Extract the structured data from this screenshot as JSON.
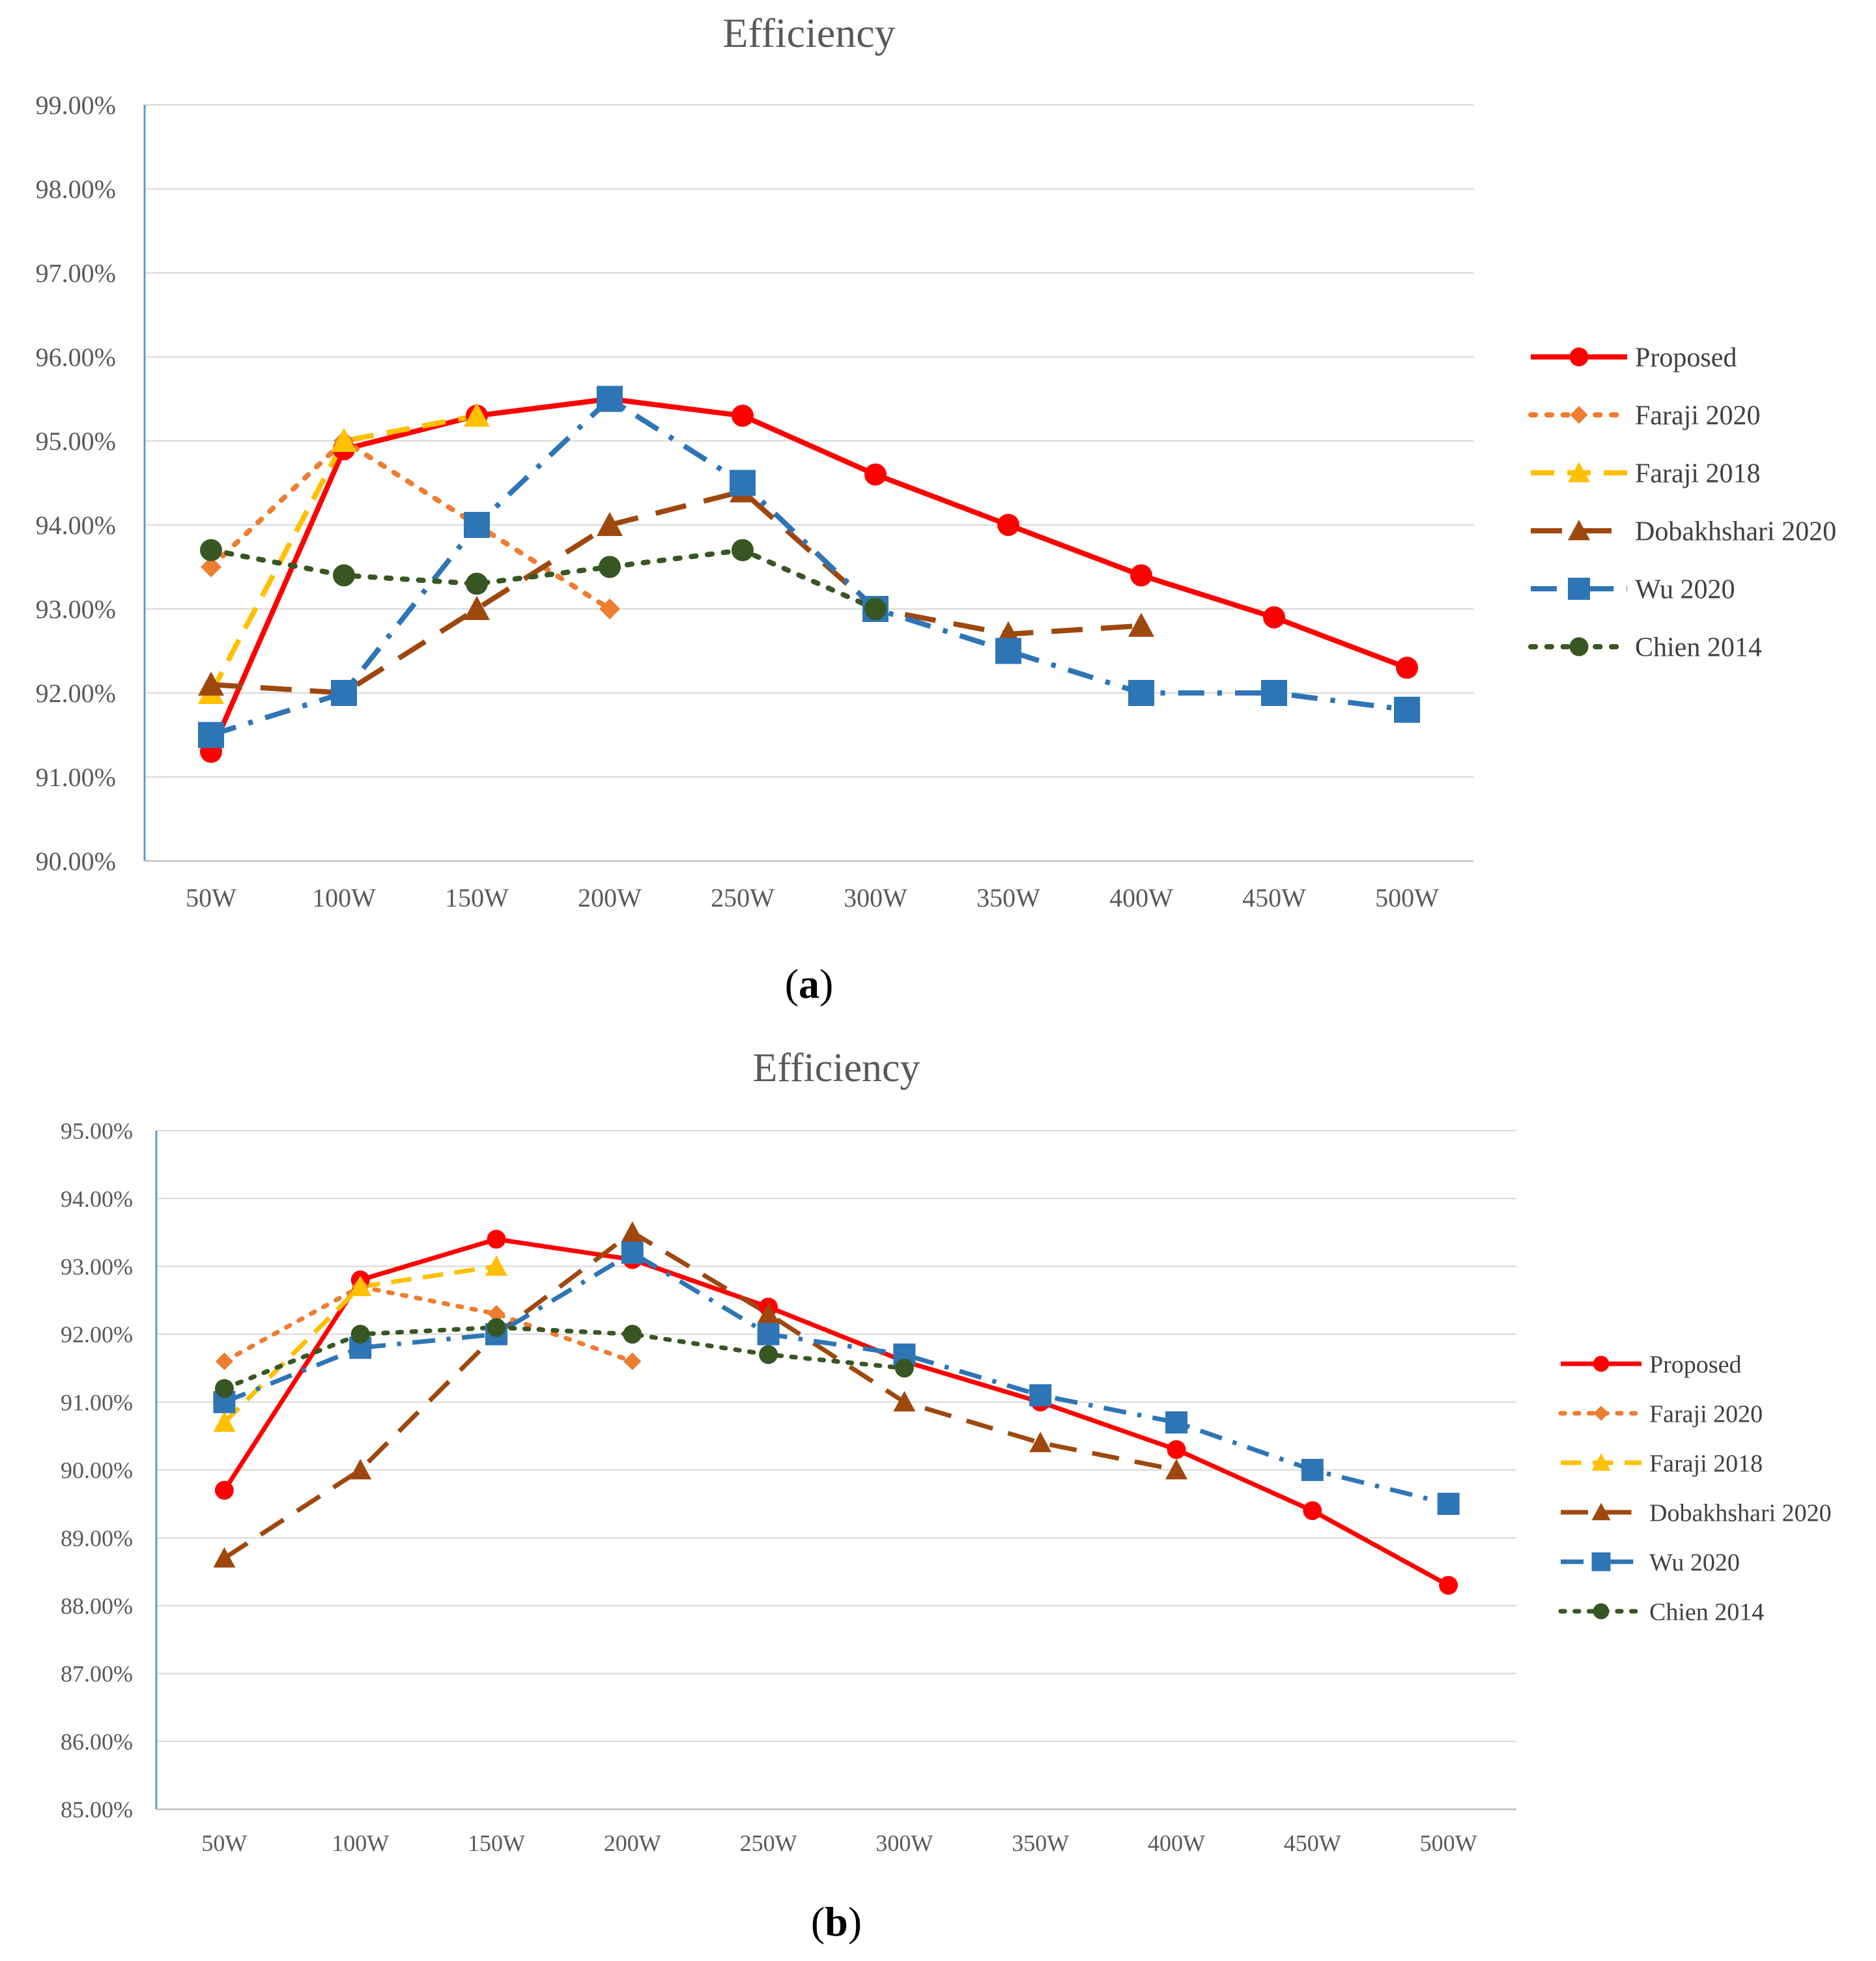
{
  "figure": {
    "panels": [
      "a",
      "b"
    ]
  },
  "chart_data": [
    {
      "panel": "a",
      "type": "line",
      "title": "Efficiency",
      "panel_label": "a",
      "xlabel": "",
      "ylabel": "",
      "categories": [
        "50W",
        "100W",
        "150W",
        "200W",
        "250W",
        "300W",
        "350W",
        "400W",
        "450W",
        "500W"
      ],
      "ylim": [
        90,
        99
      ],
      "yticks": [
        "90.00%",
        "91.00%",
        "92.00%",
        "93.00%",
        "94.00%",
        "95.00%",
        "96.00%",
        "97.00%",
        "98.00%",
        "99.00%"
      ],
      "grid": true,
      "legend_position": "right",
      "series": [
        {
          "name": "Proposed",
          "color": "#ff0000",
          "dash": "solid",
          "marker": "circle",
          "values": [
            91.3,
            94.9,
            95.3,
            95.5,
            95.3,
            94.6,
            94.0,
            93.4,
            92.9,
            92.3
          ]
        },
        {
          "name": "Faraji 2020",
          "color": "#ed7d31",
          "dash": "dot",
          "marker": "diamond",
          "values": [
            93.5,
            95.0,
            94.0,
            93.0,
            null,
            null,
            null,
            null,
            null,
            null
          ]
        },
        {
          "name": "Faraji 2018",
          "color": "#ffc000",
          "dash": "dash",
          "marker": "triangle",
          "values": [
            92.0,
            95.0,
            95.3,
            null,
            null,
            null,
            null,
            null,
            null,
            null
          ]
        },
        {
          "name": "Dobakhshari 2020",
          "color": "#9e480e",
          "dash": "longdash",
          "marker": "triangle",
          "values": [
            92.1,
            92.0,
            93.0,
            94.0,
            94.4,
            93.0,
            92.7,
            92.8,
            null,
            null
          ]
        },
        {
          "name": "Wu 2020",
          "color": "#2e75b6",
          "dash": "dashdot",
          "marker": "square",
          "values": [
            91.5,
            92.0,
            94.0,
            95.5,
            94.5,
            93.0,
            92.5,
            92.0,
            92.0,
            91.8
          ]
        },
        {
          "name": "Chien 2014",
          "color": "#375623",
          "dash": "dot",
          "marker": "circle",
          "values": [
            93.7,
            93.4,
            93.3,
            93.5,
            93.7,
            93.0,
            null,
            null,
            null,
            null
          ]
        }
      ]
    },
    {
      "panel": "b",
      "type": "line",
      "title": "Efficiency",
      "panel_label": "b",
      "xlabel": "",
      "ylabel": "",
      "categories": [
        "50W",
        "100W",
        "150W",
        "200W",
        "250W",
        "300W",
        "350W",
        "400W",
        "450W",
        "500W"
      ],
      "ylim": [
        85,
        95
      ],
      "yticks": [
        "85.00%",
        "86.00%",
        "87.00%",
        "88.00%",
        "89.00%",
        "90.00%",
        "91.00%",
        "92.00%",
        "93.00%",
        "94.00%",
        "95.00%"
      ],
      "grid": true,
      "legend_position": "right",
      "series": [
        {
          "name": "Proposed",
          "color": "#ff0000",
          "dash": "solid",
          "marker": "circle",
          "values": [
            89.7,
            92.8,
            93.4,
            93.1,
            92.4,
            91.6,
            91.0,
            90.3,
            89.4,
            88.3
          ]
        },
        {
          "name": "Faraji 2020",
          "color": "#ed7d31",
          "dash": "dot",
          "marker": "diamond",
          "values": [
            91.6,
            92.7,
            92.3,
            91.6,
            null,
            null,
            null,
            null,
            null,
            null
          ]
        },
        {
          "name": "Faraji 2018",
          "color": "#ffc000",
          "dash": "dash",
          "marker": "triangle",
          "values": [
            90.7,
            92.7,
            93.0,
            null,
            null,
            null,
            null,
            null,
            null,
            null
          ]
        },
        {
          "name": "Dobakhshari 2020",
          "color": "#9e480e",
          "dash": "longdash",
          "marker": "triangle",
          "values": [
            88.7,
            90.0,
            92.0,
            93.5,
            92.3,
            91.0,
            90.4,
            90.0,
            null,
            null
          ]
        },
        {
          "name": "Wu 2020",
          "color": "#2e75b6",
          "dash": "dashdot",
          "marker": "square",
          "values": [
            91.0,
            91.8,
            92.0,
            93.2,
            92.0,
            91.7,
            91.1,
            90.7,
            90.0,
            89.5
          ]
        },
        {
          "name": "Chien 2014",
          "color": "#375623",
          "dash": "dot",
          "marker": "circle",
          "values": [
            91.2,
            92.0,
            92.1,
            92.0,
            91.7,
            91.5,
            null,
            null,
            null,
            null
          ]
        }
      ]
    }
  ]
}
